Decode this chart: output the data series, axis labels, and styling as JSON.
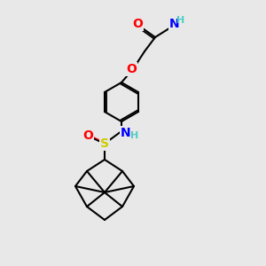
{
  "background_color": "#e8e8e8",
  "atom_colors": {
    "C": "#000000",
    "O": "#ff0000",
    "N": "#0000ff",
    "S": "#cccc00",
    "H_light": "#4ecdc4"
  },
  "bond_color": "#000000",
  "bond_width": 1.5,
  "font_size_atoms": 9,
  "font_size_H": 8
}
